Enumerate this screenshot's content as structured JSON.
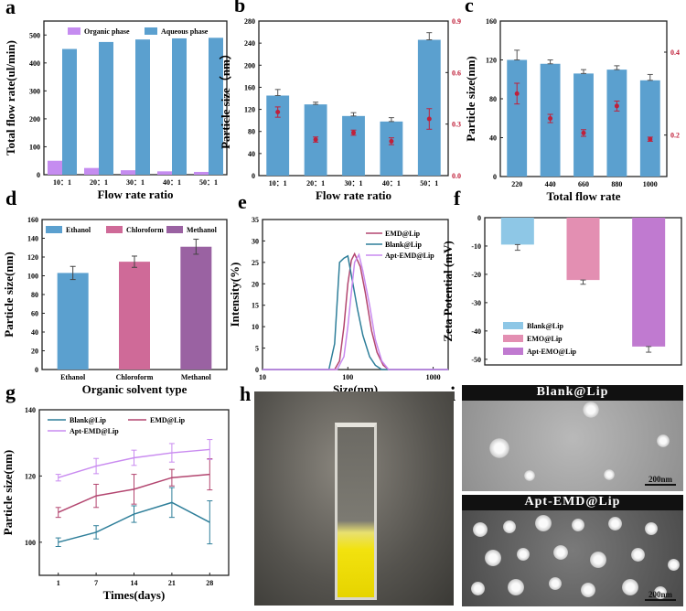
{
  "panel_labels": [
    "a",
    "b",
    "c",
    "d",
    "e",
    "f",
    "g",
    "h",
    "i"
  ],
  "colors": {
    "blue": "#5ba0cf",
    "violet": "#c58cf0",
    "pink": "#cf6a98",
    "purple": "#9a62a2",
    "red": "#c0203a",
    "teal": "#2f7f9a",
    "magenta": "#b34670",
    "lilac": "#c98bf0",
    "zpink": "#e38fb2",
    "zpurple": "#c07ad0",
    "zblue": "#8ec7e6"
  },
  "chart_data": [
    {
      "id": "a",
      "type": "bar",
      "title": "",
      "xlabel": "Flow rate ratio",
      "ylabel": "Total flow rate(ul/min)",
      "categories": [
        "10：1",
        "20：1",
        "30：1",
        "40：1",
        "50：1"
      ],
      "ylim": [
        0,
        550
      ],
      "yticks": [
        0,
        100,
        200,
        300,
        400,
        500
      ],
      "legend": "top-right",
      "series": [
        {
          "name": "Organic phase",
          "values": [
            50,
            24,
            16,
            12,
            10
          ]
        },
        {
          "name": "Aqueous phase",
          "values": [
            450,
            475,
            484,
            488,
            490
          ]
        }
      ]
    },
    {
      "id": "b",
      "type": "bar",
      "xlabel": "Flow rate ratio",
      "ylabel": "Particle size（nm）",
      "categories": [
        "10：1",
        "20：1",
        "30：1",
        "40：1",
        "50：1"
      ],
      "ylim": [
        0,
        280
      ],
      "yticks": [
        0,
        40,
        80,
        120,
        160,
        200,
        240,
        280
      ],
      "values": [
        145,
        129,
        108,
        98,
        246
      ],
      "errors": [
        11,
        4,
        6,
        7,
        13
      ],
      "pdi": {
        "ylim": [
          0,
          0.9
        ],
        "yticks": [
          "0.0",
          "0.3",
          "0.6",
          "0.9"
        ],
        "values": [
          0.37,
          0.21,
          0.25,
          0.2,
          0.33
        ],
        "errors": [
          0.03,
          0.015,
          0.015,
          0.02,
          0.06
        ]
      }
    },
    {
      "id": "c",
      "type": "bar",
      "xlabel": "Total flow rate",
      "ylabel": "Particle size(nm)",
      "categories": [
        "220",
        "440",
        "660",
        "880",
        "1000"
      ],
      "ylim": [
        0,
        160
      ],
      "yticks": [
        0,
        40,
        80,
        120,
        160
      ],
      "values": [
        120,
        116,
        106,
        110,
        99
      ],
      "errors": [
        10,
        4,
        4,
        4,
        6
      ],
      "pdi": {
        "ylim": [
          0.1,
          0.475
        ],
        "yticks": [
          "0.2",
          "0.4"
        ],
        "values": [
          0.3,
          0.24,
          0.205,
          0.27,
          0.19
        ],
        "errors": [
          0.025,
          0.01,
          0.008,
          0.012,
          0.005
        ]
      }
    },
    {
      "id": "d",
      "type": "bar",
      "xlabel": "Organic solvent type",
      "ylabel": "Particle size(nm)",
      "categories": [
        "Ethanol",
        "Chloroform",
        "Methanol"
      ],
      "ylim": [
        0,
        160
      ],
      "yticks": [
        0,
        20,
        40,
        60,
        80,
        100,
        120,
        140,
        160
      ],
      "legend": "top",
      "values": [
        103,
        115,
        131
      ],
      "errors": [
        7,
        6,
        8
      ]
    },
    {
      "id": "e",
      "type": "line",
      "xlabel": "Size(nm)",
      "ylabel": "Intensity(%)",
      "xscale": "log",
      "xlim": [
        10,
        1500
      ],
      "xticks": [
        "10",
        "100",
        "1000"
      ],
      "ylim": [
        0,
        35
      ],
      "yticks": [
        0,
        5,
        10,
        15,
        20,
        25,
        30,
        35
      ],
      "legend": "top-right",
      "series": [
        {
          "name": "EMD@Lip",
          "x": [
            10,
            70,
            80,
            90,
            100,
            110,
            120,
            140,
            160,
            190,
            220,
            260,
            300,
            1500
          ],
          "y": [
            0,
            0,
            2,
            10,
            20,
            25.5,
            27,
            24,
            18,
            9,
            4,
            1,
            0,
            0
          ]
        },
        {
          "name": "Blank@Lip",
          "x": [
            10,
            60,
            70,
            80,
            90,
            100,
            110,
            130,
            150,
            180,
            210,
            250,
            1500
          ],
          "y": [
            0,
            0,
            6,
            25,
            26,
            26.5,
            22,
            14,
            8,
            3,
            1,
            0,
            0
          ]
        },
        {
          "name": "Apt-EMD@Lip",
          "x": [
            10,
            75,
            90,
            100,
            110,
            120,
            135,
            150,
            180,
            210,
            250,
            300,
            1500
          ],
          "y": [
            0,
            0,
            3,
            10,
            18,
            25,
            26.8,
            23,
            15,
            7,
            2,
            0,
            0
          ]
        }
      ]
    },
    {
      "id": "f",
      "type": "bar",
      "xlabel": "",
      "ylabel": "Zeta Potential (mV)",
      "categories": [
        "Blank@Lip",
        "EMO@Lip",
        "Apt-EMO@Lip"
      ],
      "ylim": [
        -52,
        0
      ],
      "yticks": [
        0,
        -10,
        -20,
        -30,
        -40,
        -50
      ],
      "legend": "bottom-left",
      "values": [
        -9.5,
        -22,
        -45.5
      ],
      "errors": [
        2,
        1.5,
        2
      ]
    },
    {
      "id": "g",
      "type": "line",
      "xlabel": "Times(days)",
      "ylabel": "Particle size(nm)",
      "categories": [
        "1",
        "7",
        "14",
        "21",
        "28"
      ],
      "ylim": [
        90,
        140
      ],
      "yticks": [
        100,
        120,
        140
      ],
      "legend": "top-left",
      "series": [
        {
          "name": "Blank@Lip",
          "values": [
            100,
            103,
            108.5,
            112,
            106
          ],
          "errors": [
            1.3,
            2,
            2.5,
            4.5,
            6.5
          ]
        },
        {
          "name": "EMD@Lip",
          "values": [
            109,
            114,
            116,
            119.5,
            120.5
          ],
          "errors": [
            1.5,
            3.5,
            4.5,
            2.5,
            4.7
          ]
        },
        {
          "name": "Apt-EMD@Lip",
          "values": [
            119.5,
            123,
            125.5,
            127,
            128
          ],
          "errors": [
            1,
            2.3,
            2.3,
            2.8,
            3
          ]
        }
      ]
    }
  ],
  "tem": {
    "top_label": "Blank@Lip",
    "bottom_label": "Apt-EMD@Lip",
    "scale_top": "200nm",
    "scale_bottom": "200nm"
  }
}
